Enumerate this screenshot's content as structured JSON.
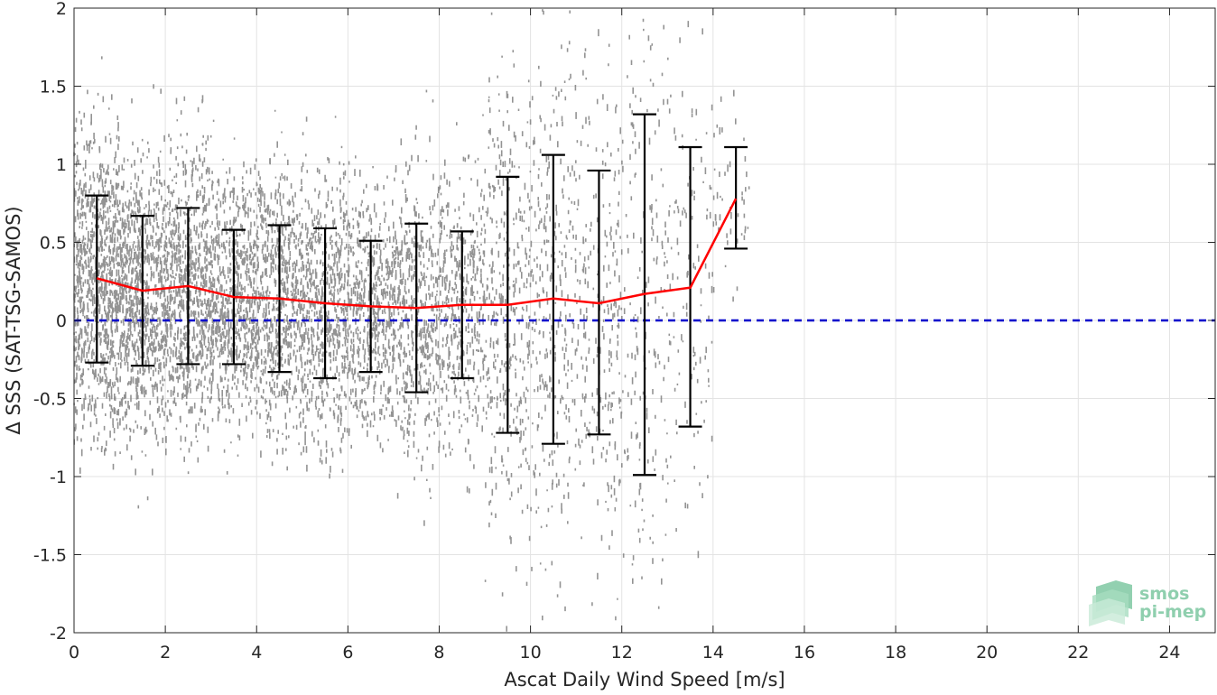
{
  "chart_data": {
    "type": "scatter",
    "xlabel": "Ascat Daily Wind Speed [m/s]",
    "ylabel": "Δ SSS (SAT-TSG-SAMOS)",
    "xlim": [
      0,
      25
    ],
    "ylim": [
      -2,
      2
    ],
    "xticks": [
      0,
      2,
      4,
      6,
      8,
      10,
      12,
      14,
      16,
      18,
      20,
      22,
      24
    ],
    "yticks": [
      -2,
      -1.5,
      -1,
      -0.5,
      0,
      0.5,
      1,
      1.5,
      2
    ],
    "ytick_labels": [
      "-2",
      "-1.5",
      "-1",
      "-0.5",
      "0",
      "0.5",
      "1",
      "1.5",
      "2"
    ],
    "grid": true,
    "reference_line": {
      "y": 0,
      "style": "dashed",
      "color": "#0000cc"
    },
    "scatter_color": "#808080",
    "mean_line_color": "#ff0000",
    "errorbar_color": "#000000",
    "bins": [
      {
        "x": 0.5,
        "mean": 0.27,
        "lower": -0.27,
        "upper": 0.8
      },
      {
        "x": 1.5,
        "mean": 0.19,
        "lower": -0.29,
        "upper": 0.67
      },
      {
        "x": 2.5,
        "mean": 0.22,
        "lower": -0.28,
        "upper": 0.72
      },
      {
        "x": 3.5,
        "mean": 0.15,
        "lower": -0.28,
        "upper": 0.58
      },
      {
        "x": 4.5,
        "mean": 0.14,
        "lower": -0.33,
        "upper": 0.61
      },
      {
        "x": 5.5,
        "mean": 0.11,
        "lower": -0.37,
        "upper": 0.59
      },
      {
        "x": 6.5,
        "mean": 0.09,
        "lower": -0.33,
        "upper": 0.51
      },
      {
        "x": 7.5,
        "mean": 0.08,
        "lower": -0.46,
        "upper": 0.62
      },
      {
        "x": 8.5,
        "mean": 0.1,
        "lower": -0.37,
        "upper": 0.57
      },
      {
        "x": 9.5,
        "mean": 0.1,
        "lower": -0.72,
        "upper": 0.92
      },
      {
        "x": 10.5,
        "mean": 0.14,
        "lower": -0.79,
        "upper": 1.06
      },
      {
        "x": 11.5,
        "mean": 0.11,
        "lower": -0.73,
        "upper": 0.96
      },
      {
        "x": 12.5,
        "mean": 0.17,
        "lower": -0.99,
        "upper": 1.32
      },
      {
        "x": 13.5,
        "mean": 0.21,
        "lower": -0.68,
        "upper": 1.11
      },
      {
        "x": 14.5,
        "mean": 0.78,
        "lower": 0.46,
        "upper": 1.11
      }
    ]
  },
  "logo": {
    "line1": "smos",
    "line2": "pi-mep"
  }
}
